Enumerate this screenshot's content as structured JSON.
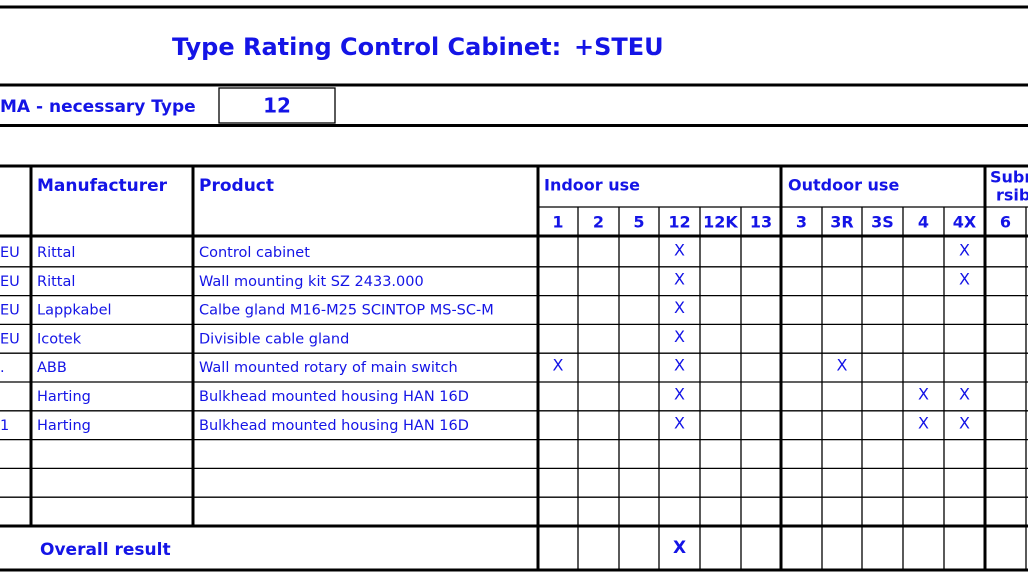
{
  "header": {
    "title": "Type Rating Control Cabinet:",
    "cabinet": "+STEU"
  },
  "type_row": {
    "label": "MA - necessary Type",
    "value": "12"
  },
  "table": {
    "columns": {
      "manufacturer": "Manufacturer",
      "product": "Product"
    },
    "groups": {
      "indoor": "Indoor use",
      "outdoor": "Outdoor use",
      "sub_line1": "Subr",
      "sub_line2": "rsib"
    },
    "types": [
      "1",
      "2",
      "5",
      "12",
      "12K",
      "13",
      "3",
      "3R",
      "3S",
      "4",
      "4X",
      "6"
    ],
    "rows": [
      {
        "stub": "EU",
        "manufacturer": "Rittal",
        "product": "Control cabinet",
        "marks": {
          "12": "X",
          "4X": "X"
        }
      },
      {
        "stub": "EU",
        "manufacturer": "Rittal",
        "product": "Wall mounting kit SZ 2433.000",
        "marks": {
          "12": "X",
          "4X": "X"
        }
      },
      {
        "stub": "EU",
        "manufacturer": "Lappkabel",
        "product": "Calbe gland M16-M25 SCINTOP MS-SC-M",
        "marks": {
          "12": "X"
        }
      },
      {
        "stub": "EU",
        "manufacturer": "Icotek",
        "product": "Divisible cable gland",
        "marks": {
          "12": "X"
        }
      },
      {
        "stub": ".",
        "manufacturer": "ABB",
        "product": "Wall mounted rotary of main switch",
        "marks": {
          "1": "X",
          "12": "X",
          "3R": "X"
        }
      },
      {
        "manufacturer": "Harting",
        "product": "Bulkhead mounted housing HAN 16D",
        "marks": {
          "12": "X",
          "4": "X",
          "4X": "X"
        }
      },
      {
        "stub": "1",
        "manufacturer": "Harting",
        "product": "Bulkhead mounted housing HAN 16D",
        "marks": {
          "12": "X",
          "4": "X",
          "4X": "X"
        }
      }
    ],
    "overall": {
      "label": "Overall result",
      "marks": {
        "12": "X"
      }
    }
  }
}
